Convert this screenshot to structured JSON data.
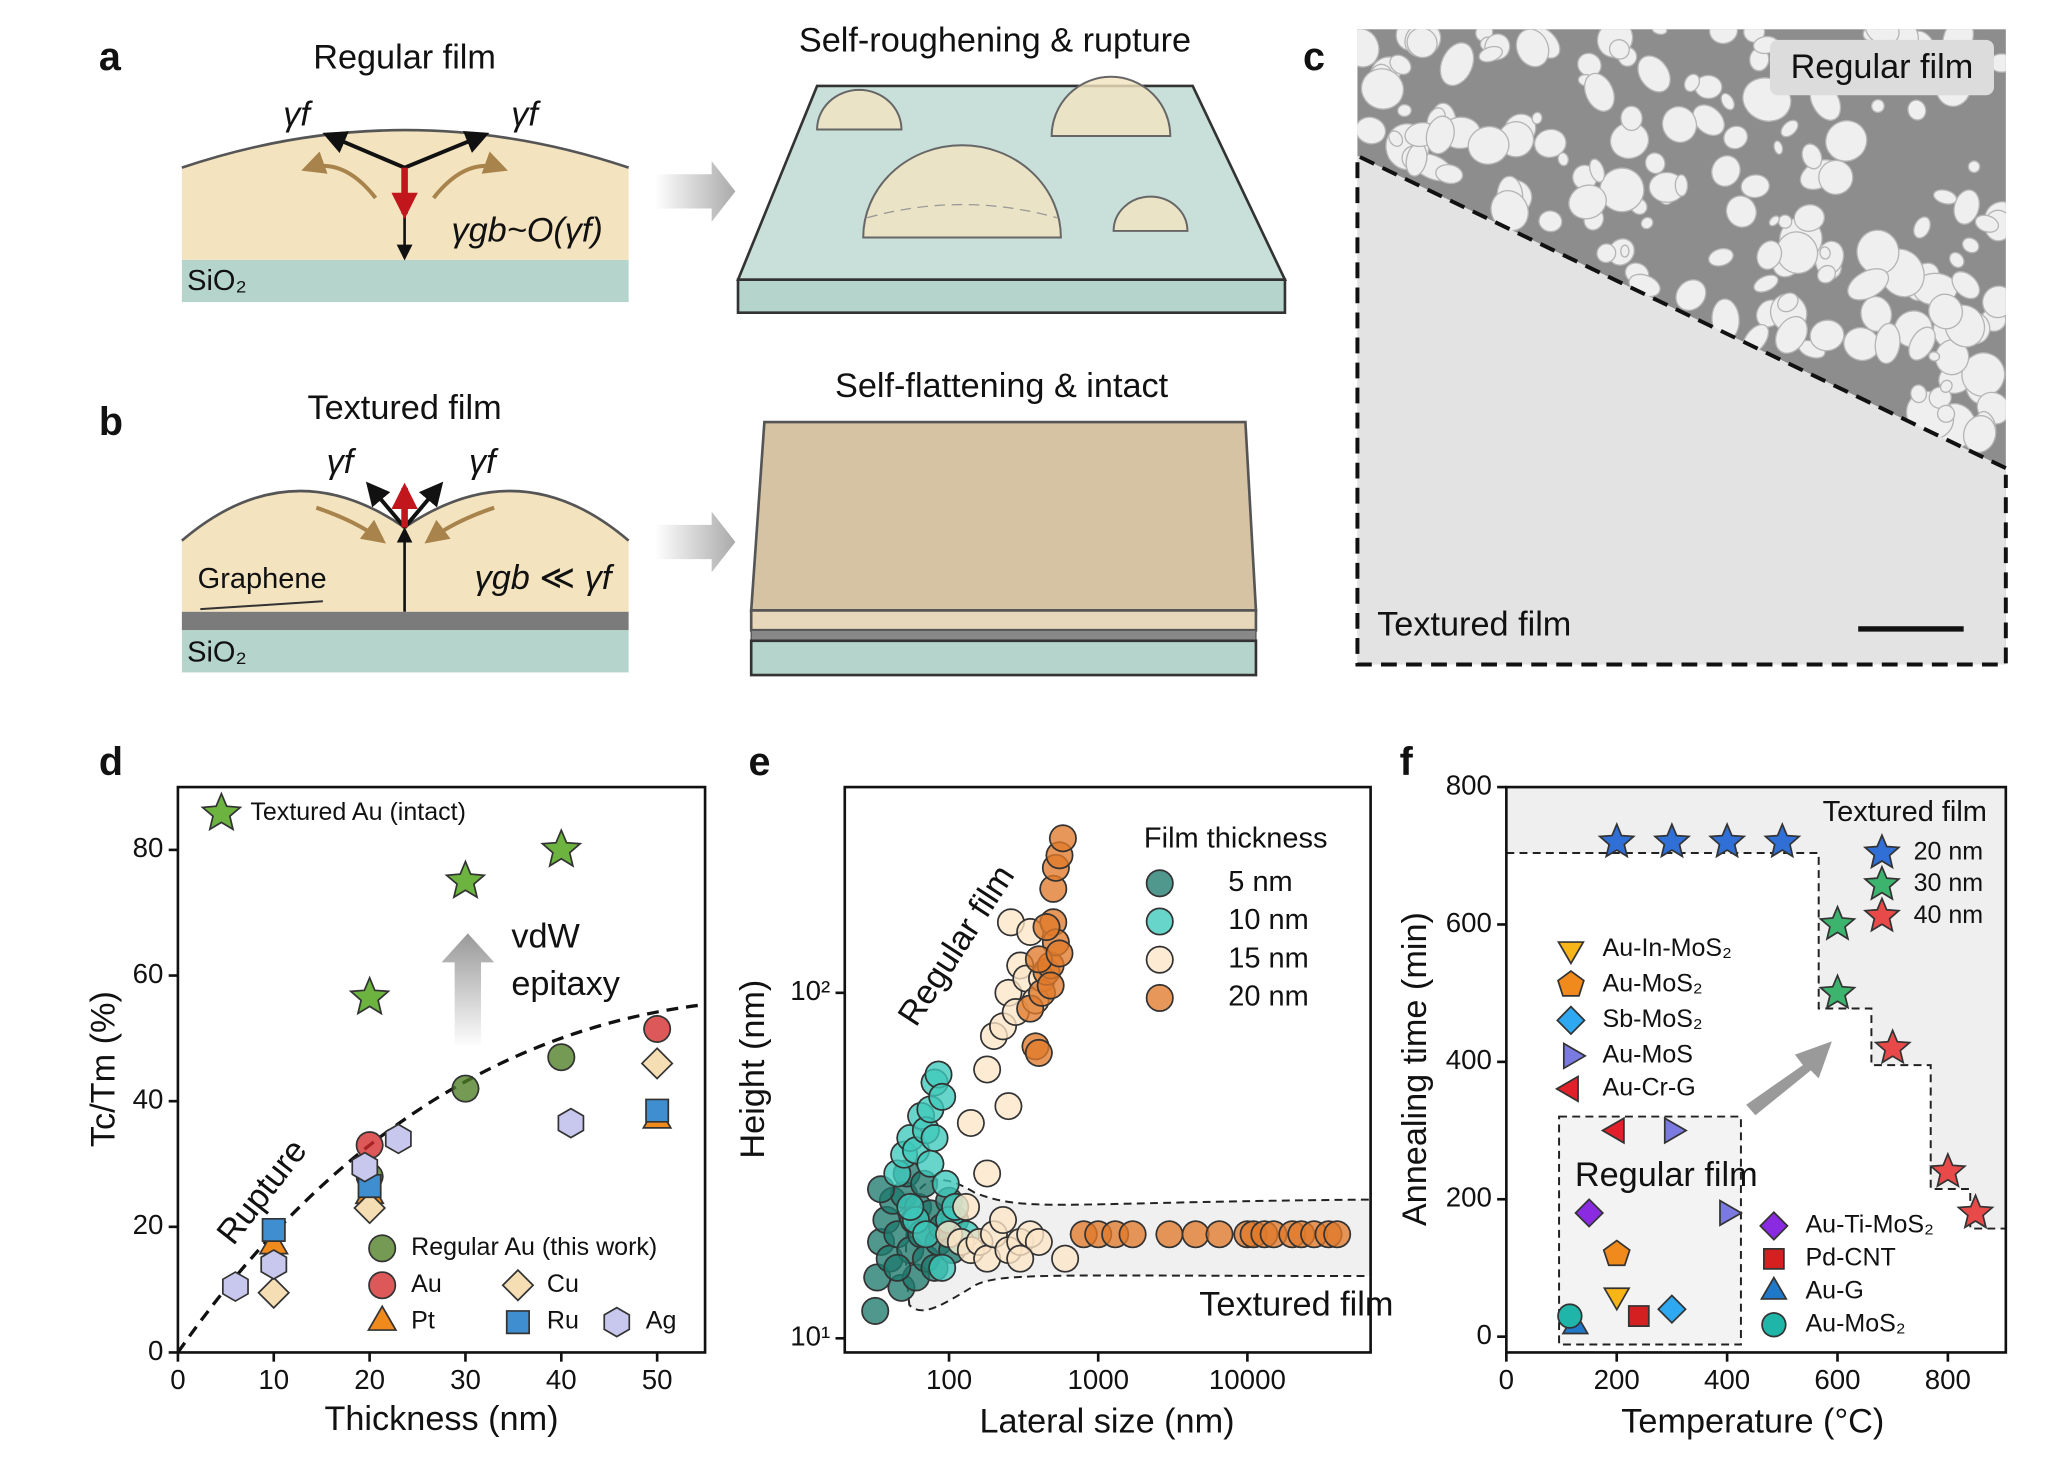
{
  "panel_labels": [
    "a",
    "b",
    "c",
    "d",
    "e",
    "f"
  ],
  "panel_a": {
    "title": "Regular film",
    "gamma_left": "γf",
    "gamma_right": "γf",
    "gamma_gb": "γgb~O(γf)",
    "substrate": "SiO₂",
    "caption": "Self-roughening & rupture"
  },
  "panel_b": {
    "title": "Textured film",
    "gamma_left": "γf",
    "gamma_right": "γf",
    "layer": "Graphene",
    "gamma_gb": "γgb ≪ γf",
    "substrate": "SiO₂",
    "caption": "Self-flattening & intact"
  },
  "panel_c": {
    "top_label": "Regular film",
    "bottom_label": "Textured film"
  },
  "chart_data": [
    {
      "type": "scatter",
      "xlabel": "Thickness (nm)",
      "ylabel": "Tc/Tm (%)",
      "xlim": [
        0,
        55
      ],
      "ylim": [
        0,
        90
      ],
      "xticks": [
        0,
        10,
        20,
        30,
        40,
        50
      ],
      "yticks": [
        0,
        20,
        40,
        60,
        80
      ],
      "annotations": [
        "Rupture",
        "vdW",
        "epitaxy"
      ],
      "series": [
        {
          "name": "Textured Au (intact)",
          "color": "#6db33f",
          "marker": "star",
          "x": [
            20,
            30,
            40
          ],
          "values": [
            56.5,
            75,
            80
          ]
        },
        {
          "name": "Regular Au (this work)",
          "color": "#4e7d23",
          "marker": "circle",
          "x": [
            20,
            30,
            40
          ],
          "values": [
            28,
            42,
            47
          ]
        },
        {
          "name": "Au",
          "color": "#d42a2a",
          "marker": "circle",
          "x": [
            20,
            50
          ],
          "values": [
            33,
            51.5
          ]
        },
        {
          "name": "Pt",
          "color": "#f08a1c",
          "marker": "triangle-up",
          "x": [
            10,
            20,
            50
          ],
          "values": [
            17,
            25,
            37
          ]
        },
        {
          "name": "Cu",
          "color": "#f5deb3",
          "marker": "diamond",
          "x": [
            10,
            20,
            50
          ],
          "values": [
            9.5,
            23,
            46
          ]
        },
        {
          "name": "Ru",
          "color": "#3e8ed0",
          "marker": "square",
          "x": [
            10,
            20,
            50
          ],
          "values": [
            19.5,
            26.5,
            38.5
          ]
        },
        {
          "name": "Ag",
          "color": "#c8c8ee",
          "marker": "hexagon",
          "x": [
            6,
            10,
            19.5,
            23,
            41
          ],
          "values": [
            10.5,
            14,
            29.5,
            34,
            36.5
          ]
        }
      ]
    },
    {
      "type": "scatter",
      "xlabel": "Lateral size (nm)",
      "ylabel": "Height (nm)",
      "xlog": true,
      "ylog": true,
      "xlim": [
        20,
        67000
      ],
      "ylim": [
        9.1,
        394
      ],
      "xticks": [
        100,
        1000,
        10000
      ],
      "yticks": [
        {
          "value": 10,
          "label": "10¹"
        },
        {
          "value": 100,
          "label": "10²"
        }
      ],
      "legend_title": "Film thickness",
      "annotations": [
        "Regular film",
        "Textured film"
      ],
      "series": [
        {
          "name": "5 nm",
          "color": "#1f7a6e",
          "marker": "circle",
          "x": [
            32,
            33,
            35,
            38,
            40,
            42,
            45,
            48,
            50,
            52,
            55,
            58,
            60,
            62,
            65,
            70,
            75,
            80,
            85,
            90,
            100,
            105,
            110,
            35,
            45,
            68
          ],
          "values": [
            12,
            15,
            19,
            22,
            17,
            25,
            20,
            14,
            26,
            30,
            18,
            22,
            15,
            24,
            20,
            17,
            23,
            16,
            19,
            21,
            25,
            18,
            22,
            27,
            16,
            28
          ]
        },
        {
          "name": "10 nm",
          "color": "#3ec9bb",
          "marker": "circle",
          "x": [
            45,
            50,
            55,
            60,
            65,
            70,
            75,
            80,
            85,
            90,
            75,
            80,
            95,
            100,
            110,
            120,
            60,
            70,
            90,
            130,
            55
          ],
          "values": [
            30,
            34,
            38,
            35,
            44,
            40,
            46,
            55,
            58,
            50,
            32,
            38,
            28,
            22,
            24,
            19,
            22,
            20,
            16,
            20,
            24
          ]
        },
        {
          "name": "15 nm",
          "color": "#fde6c8",
          "marker": "circle",
          "x": [
            100,
            120,
            140,
            160,
            180,
            200,
            250,
            300,
            350,
            400,
            600,
            140,
            180,
            200,
            230,
            250,
            260,
            300,
            330,
            350,
            280,
            380,
            420,
            250,
            180,
            230,
            300,
            130
          ],
          "values": [
            20,
            19,
            18,
            19,
            17,
            20,
            18,
            19,
            20,
            19,
            17,
            42,
            60,
            75,
            80,
            100,
            160,
            120,
            110,
            150,
            88,
            95,
            110,
            47,
            30,
            22,
            17,
            24
          ]
        },
        {
          "name": "20 nm",
          "color": "#e07a2a",
          "marker": "circle",
          "x": [
            380,
            400,
            350,
            420,
            450,
            480,
            500,
            520,
            450,
            400,
            480,
            500,
            520,
            550,
            580,
            550,
            800,
            1000,
            1300,
            1700,
            3000,
            4500,
            6500,
            10000,
            11000,
            13000,
            15000,
            20000,
            23000,
            28000,
            35000,
            40000
          ],
          "values": [
            70,
            67,
            90,
            100,
            115,
            120,
            160,
            140,
            155,
            125,
            105,
            200,
            230,
            250,
            280,
            130,
            20,
            20,
            20,
            20,
            20,
            20,
            20,
            20,
            20,
            20,
            20,
            20,
            20,
            20,
            20,
            20
          ]
        }
      ]
    },
    {
      "type": "scatter",
      "xlabel": "Temperature (°C)",
      "ylabel": "Annealing time (min)",
      "xlim": [
        0,
        905
      ],
      "ylim": [
        -23,
        800
      ],
      "xticks": [
        0,
        200,
        400,
        600,
        800
      ],
      "yticks": [
        0,
        200,
        400,
        600,
        800
      ],
      "legend_title": "Textured film",
      "annotations": [
        "Regular film"
      ],
      "series": [
        {
          "name": "20 nm",
          "color": "#2f6fd6",
          "marker": "star",
          "x": [
            200,
            300,
            400,
            500
          ],
          "values": [
            720,
            720,
            720,
            720
          ]
        },
        {
          "name": "30 nm",
          "color": "#3cb46e",
          "marker": "star",
          "x": [
            600,
            600
          ],
          "values": [
            600,
            500
          ]
        },
        {
          "name": "40 nm",
          "color": "#e84a4a",
          "marker": "star",
          "x": [
            700,
            800,
            850
          ],
          "values": [
            420,
            240,
            180
          ]
        },
        {
          "name": "Au-In-MoS₂",
          "color": "#f7b518",
          "marker": "triangle-down",
          "x": [
            200
          ],
          "values": [
            60
          ]
        },
        {
          "name": "Au-MoS₂",
          "color": "#f08a1c",
          "marker": "pentagon",
          "x": [
            200
          ],
          "values": [
            120
          ]
        },
        {
          "name": "Sb-MoS₂",
          "color": "#2ea8f0",
          "marker": "diamond",
          "x": [
            300
          ],
          "values": [
            40
          ]
        },
        {
          "name": "Au-MoS",
          "color": "#7a7ae0",
          "marker": "triangle-right",
          "x": [
            300,
            400
          ],
          "values": [
            300,
            180
          ]
        },
        {
          "name": "Au-Cr-G",
          "color": "#e0202a",
          "marker": "triangle-left",
          "x": [
            200
          ],
          "values": [
            300
          ]
        },
        {
          "name": "Au-Ti-MoS₂",
          "color": "#8a2be2",
          "marker": "diamond",
          "x": [
            150
          ],
          "values": [
            180
          ]
        },
        {
          "name": "Pd-CNT",
          "color": "#d42020",
          "marker": "square",
          "x": [
            240
          ],
          "values": [
            30
          ]
        },
        {
          "name": "Au-G",
          "color": "#1f78c8",
          "marker": "triangle-up",
          "x": [
            125
          ],
          "values": [
            15
          ]
        },
        {
          "name": "Au-MoS₂",
          "color": "#1fb5a8",
          "marker": "circle",
          "x": [
            115
          ],
          "values": [
            30
          ]
        }
      ]
    }
  ]
}
